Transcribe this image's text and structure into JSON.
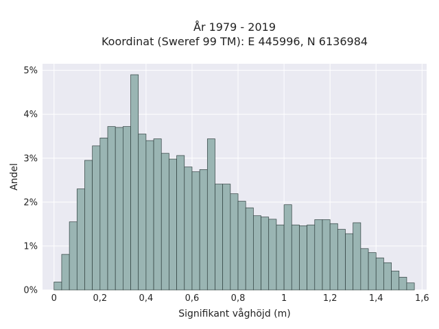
{
  "chart_data": {
    "type": "bar",
    "title": [
      "År 1979 - 2019",
      "Koordinat (Sweref 99 TM): E 445996, N 6136984"
    ],
    "xlabel": "Signifikant våghöjd (m)",
    "ylabel": "Andel",
    "xlim": [
      -0.05,
      1.62
    ],
    "ylim": [
      0,
      5.15
    ],
    "x_ticks": [
      0,
      0.2,
      0.4,
      0.6,
      0.8,
      1.0,
      1.2,
      1.4,
      1.6
    ],
    "x_tick_labels": [
      "0",
      "0,2",
      "0,4",
      "0,6",
      "0,8",
      "1",
      "1,2",
      "1,4",
      "1,6"
    ],
    "y_ticks": [
      0,
      1,
      2,
      3,
      4,
      5
    ],
    "y_tick_labels": [
      "0%",
      "1%",
      "2%",
      "3%",
      "4%",
      "5%"
    ],
    "grid": true,
    "bin_width": 0.0333,
    "bin_starts": [
      0.0,
      0.0333,
      0.0667,
      0.1,
      0.1333,
      0.1667,
      0.2,
      0.2333,
      0.2667,
      0.3,
      0.3333,
      0.3667,
      0.4,
      0.4333,
      0.4667,
      0.5,
      0.5333,
      0.5667,
      0.6,
      0.6333,
      0.6667,
      0.7,
      0.7333,
      0.7667,
      0.8,
      0.8333,
      0.8667,
      0.9,
      0.9333,
      0.9667,
      1.0,
      1.0333,
      1.0667,
      1.1,
      1.1333,
      1.1667,
      1.2,
      1.2333,
      1.2667,
      1.3,
      1.3333,
      1.3667,
      1.4,
      1.4333,
      1.4667,
      1.5,
      1.5333
    ],
    "values": [
      0.18,
      0.81,
      1.55,
      2.3,
      2.95,
      3.28,
      3.46,
      3.72,
      3.7,
      3.72,
      4.9,
      3.55,
      3.4,
      3.44,
      3.11,
      2.98,
      3.06,
      2.8,
      2.69,
      2.74,
      3.44,
      2.41,
      2.41,
      2.19,
      2.02,
      1.87,
      1.69,
      1.66,
      1.61,
      1.48,
      1.94,
      1.48,
      1.46,
      1.48,
      1.6,
      1.6,
      1.51,
      1.38,
      1.28,
      1.53,
      0.94,
      0.85,
      0.73,
      0.62,
      0.43,
      0.29,
      0.16
    ],
    "bar_color": "#9ab5b3",
    "edge_color": "#2f3f3e",
    "background_color": "#eaeaf2",
    "grid_color": "#ffffff"
  }
}
